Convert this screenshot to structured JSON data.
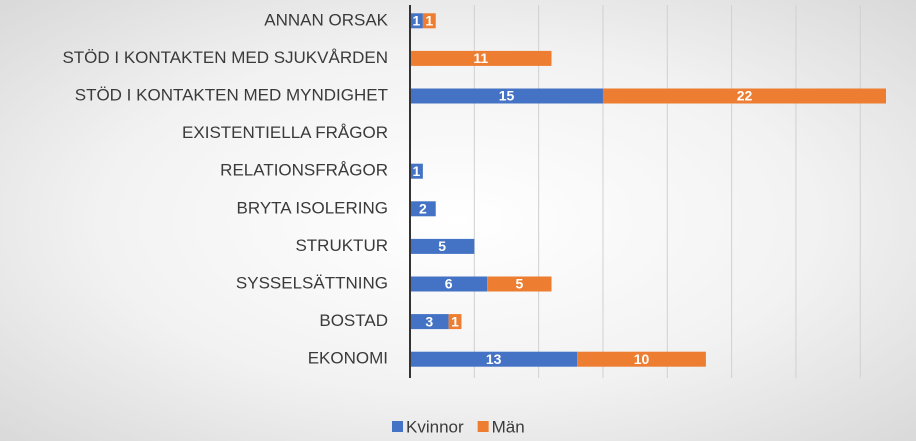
{
  "chart_data": {
    "type": "stacked-barh",
    "categories": [
      "ANNAN ORSAK",
      "STÖD I KONTAKTEN MED SJUKVÅRDEN",
      "STÖD I KONTAKTEN MED MYNDIGHET",
      "EXISTENTIELLA FRÅGOR",
      "RELATIONSFRÅGOR",
      "BRYTA ISOLERING",
      "STRUKTUR",
      "SYSSELSÄTTNING",
      "BOSTAD",
      "EKONOMI"
    ],
    "series": [
      {
        "name": "Kvinnor",
        "color": "#4472c4",
        "values": [
          1,
          null,
          15,
          null,
          1,
          2,
          5,
          6,
          3,
          13
        ]
      },
      {
        "name": "Män",
        "color": "#ed7d31",
        "values": [
          1,
          11,
          22,
          null,
          null,
          null,
          null,
          5,
          1,
          10
        ]
      }
    ],
    "xlim": [
      0,
      37
    ],
    "xticks": [
      5,
      10,
      15,
      20,
      25,
      30,
      35
    ],
    "grid": true,
    "legend": "bottom"
  }
}
